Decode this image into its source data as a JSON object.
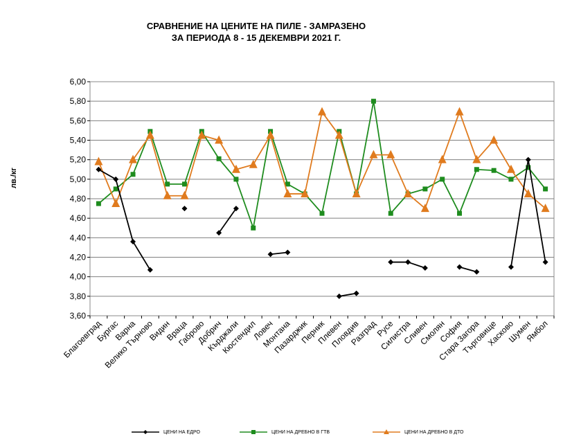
{
  "title_line1": "СРАВНЕНИЕ НА ЦЕНИТЕ НА ПИЛЕ - ЗАМРАЗЕНО",
  "title_line2": "ЗА ПЕРИОДА 8 - 15 ДЕКЕМВРИ 2021 Г.",
  "chart_data": {
    "type": "line",
    "title": "СРАВНЕНИЕ НА ЦЕНИТЕ НА ПИЛЕ - ЗАМРАЗЕНО ЗА ПЕРИОДА 8 - 15 ДЕКЕМВРИ 2021 Г.",
    "xlabel": "",
    "ylabel": "лв./кг",
    "ylim": [
      3.6,
      6.0
    ],
    "yticks": [
      "3,60",
      "3,80",
      "4,00",
      "4,20",
      "4,40",
      "4,60",
      "4,80",
      "5,00",
      "5,20",
      "5,40",
      "5,60",
      "5,80",
      "6,00"
    ],
    "grid": "horizontal",
    "legend_position": "bottom",
    "categories": [
      "Благоевград",
      "Бургас",
      "Варна",
      "Велико Търново",
      "Видин",
      "Враца",
      "Габрово",
      "Добрич",
      "Кърджали",
      "Кюстендил",
      "Ловеч",
      "Монтана",
      "Пазарджик",
      "Перник",
      "Плевен",
      "Пловдив",
      "Разград",
      "Русе",
      "Силистра",
      "Сливен",
      "Смолян",
      "София",
      "Стара Загора",
      "Търговище",
      "Хасково",
      "Шумен",
      "Ямбол"
    ],
    "series": [
      {
        "name": "ЦЕНИ НА ЕДРО",
        "color": "#000000",
        "marker": "diamond",
        "values": [
          5.1,
          5.0,
          4.36,
          4.07,
          null,
          4.7,
          null,
          4.45,
          4.7,
          null,
          4.23,
          4.25,
          null,
          null,
          3.8,
          3.83,
          null,
          4.15,
          4.15,
          4.09,
          null,
          4.1,
          4.05,
          null,
          4.1,
          5.2,
          4.15
        ]
      },
      {
        "name": "ЦЕНИ НА ДРЕБНО В ГТВ",
        "color": "#1e8c1e",
        "marker": "square",
        "values": [
          4.75,
          4.9,
          5.05,
          5.49,
          4.95,
          4.95,
          5.49,
          5.21,
          5.0,
          4.5,
          5.49,
          4.95,
          4.85,
          4.65,
          5.49,
          4.85,
          5.8,
          4.65,
          4.85,
          4.9,
          5.0,
          4.65,
          5.1,
          5.09,
          5.0,
          5.12,
          4.9
        ]
      },
      {
        "name": "ЦЕНИ НА ДРЕБНО В ДТО",
        "color": "#e07b1e",
        "marker": "triangle",
        "values": [
          5.18,
          4.75,
          5.2,
          5.45,
          4.83,
          4.83,
          5.45,
          5.4,
          5.1,
          5.15,
          5.45,
          4.85,
          4.85,
          5.69,
          5.45,
          4.85,
          5.25,
          5.25,
          4.85,
          4.7,
          5.2,
          5.69,
          5.2,
          5.4,
          5.1,
          4.85,
          4.7
        ]
      }
    ]
  }
}
